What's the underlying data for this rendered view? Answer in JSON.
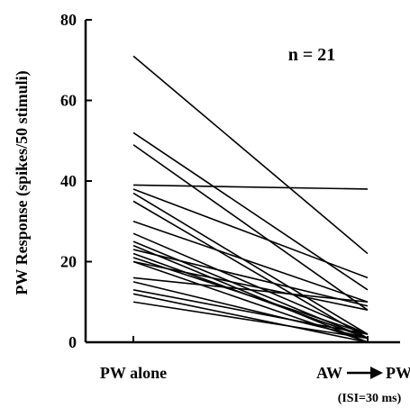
{
  "chart_data": {
    "type": "line",
    "title": "",
    "ylabel": "PW Response (spikes/50 stimuli)",
    "xlabel": "",
    "categories": [
      "PW alone",
      "AW → PW"
    ],
    "category_notes": [
      "",
      "(ISI=30 ms)"
    ],
    "ylim": [
      0,
      80
    ],
    "yticks": [
      0,
      20,
      40,
      60,
      80
    ],
    "annotation": "n = 21",
    "line_color": "#000000",
    "series": [
      {
        "values": [
          71,
          22
        ]
      },
      {
        "values": [
          52,
          13
        ]
      },
      {
        "values": [
          49,
          8
        ]
      },
      {
        "values": [
          39,
          38
        ]
      },
      {
        "values": [
          38,
          16
        ]
      },
      {
        "values": [
          37,
          2
        ]
      },
      {
        "values": [
          35,
          1
        ]
      },
      {
        "values": [
          30,
          10
        ]
      },
      {
        "values": [
          27,
          2
        ]
      },
      {
        "values": [
          25,
          1
        ]
      },
      {
        "values": [
          24,
          0
        ]
      },
      {
        "values": [
          23,
          9
        ]
      },
      {
        "values": [
          22,
          1
        ]
      },
      {
        "values": [
          21,
          2
        ]
      },
      {
        "values": [
          20,
          8
        ]
      },
      {
        "values": [
          20,
          0
        ]
      },
      {
        "values": [
          16,
          10
        ]
      },
      {
        "values": [
          15,
          1
        ]
      },
      {
        "values": [
          13,
          2
        ]
      },
      {
        "values": [
          12,
          0
        ]
      },
      {
        "values": [
          10,
          1
        ]
      }
    ]
  }
}
